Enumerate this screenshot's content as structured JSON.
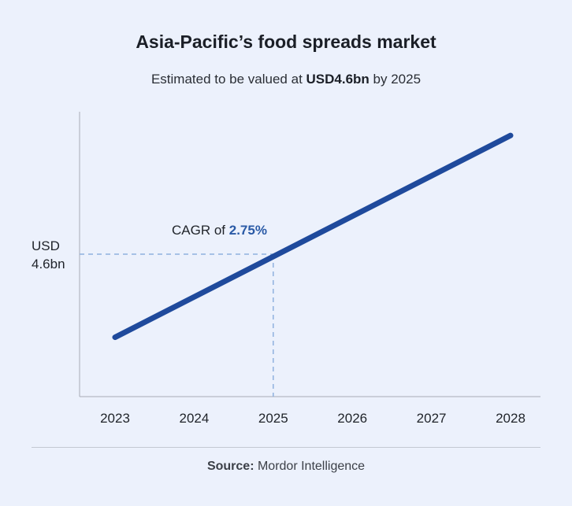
{
  "title": "Asia-Pacific’s food spreads market",
  "subtitle": {
    "prefix": "Estimated to be valued at ",
    "highlight": "USD4.6bn",
    "suffix": " by 2025"
  },
  "annotation": {
    "prefix": "CAGR of ",
    "value": "2.75%"
  },
  "reference_label": {
    "line1": "USD",
    "line2": "4.6bn"
  },
  "source": {
    "label": "Source:",
    "text": " Mordor Intelligence"
  },
  "colors": {
    "line": "#1f4a9c",
    "annotation_value": "#2a5aa6",
    "reference_dash": "#8fb1de",
    "axis": "#a7acb6"
  },
  "chart_data": {
    "type": "line",
    "x": [
      2023,
      2028
    ],
    "y": [
      3.2,
      6.6
    ],
    "xticks": [
      "2023",
      "2024",
      "2025",
      "2026",
      "2027",
      "2028"
    ],
    "xlim": [
      2023,
      2028
    ],
    "ylim": [
      2.2,
      7.0
    ],
    "reference": {
      "x": 2025,
      "y": 4.6
    },
    "grid": false
  }
}
